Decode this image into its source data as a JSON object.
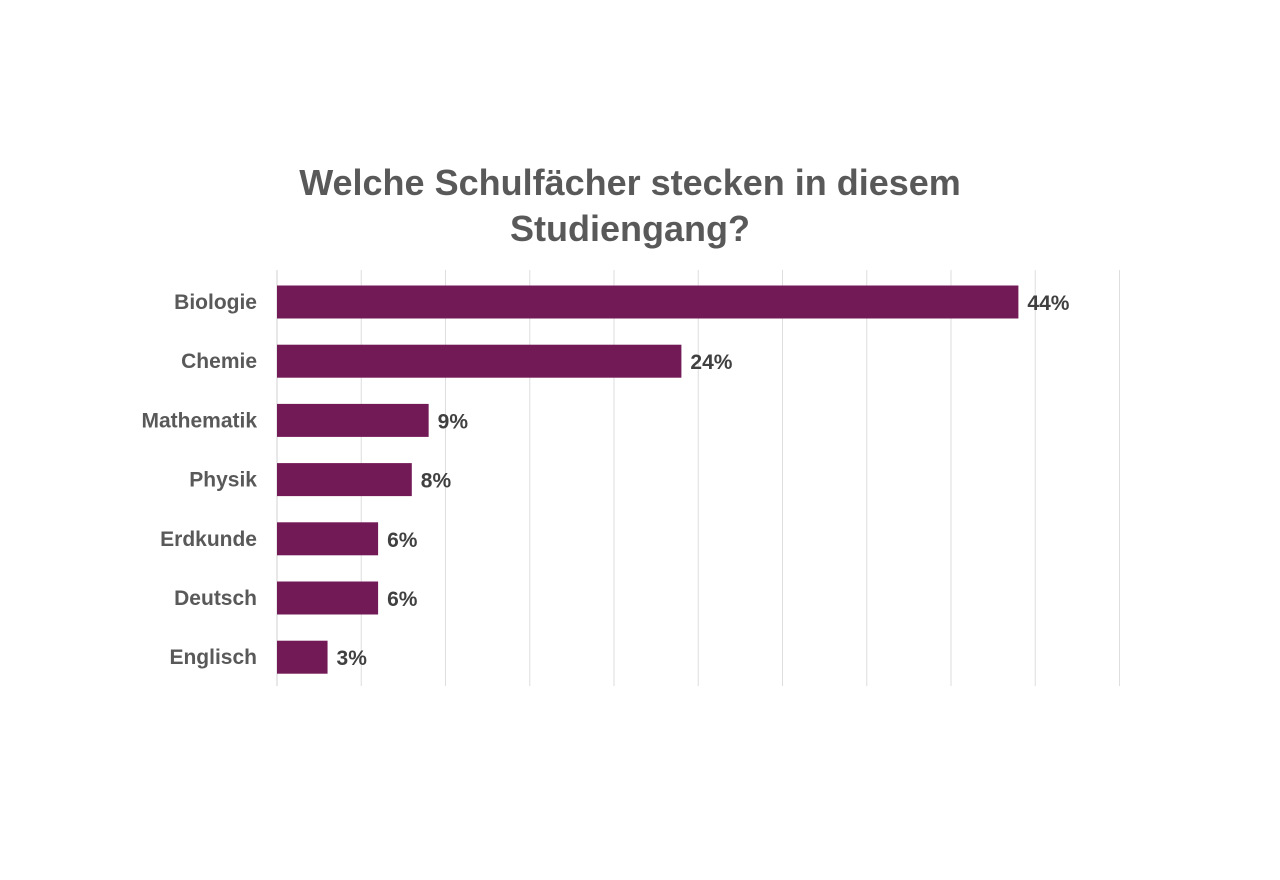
{
  "chart_data": {
    "type": "bar",
    "orientation": "horizontal",
    "title_lines": [
      "Welche Schulfächer stecken in diesem",
      "Studiengang?"
    ],
    "categories": [
      "Biologie",
      "Chemie",
      "Mathematik",
      "Physik",
      "Erdkunde",
      "Deutsch",
      "Englisch"
    ],
    "values": [
      44,
      24,
      9,
      8,
      6,
      6,
      3
    ],
    "value_labels": [
      "44%",
      "24%",
      "9%",
      "8%",
      "6%",
      "6%",
      "3%"
    ],
    "unit": "%",
    "xlim": [
      0,
      50
    ],
    "grid": true,
    "bar_color": "#721A56",
    "legend": "none"
  }
}
